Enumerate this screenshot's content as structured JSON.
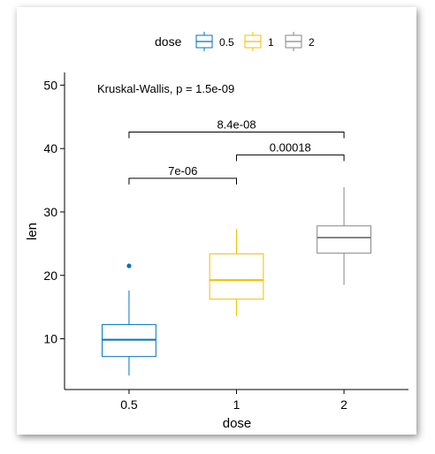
{
  "chart_data": {
    "type": "box",
    "xlabel": "dose",
    "ylabel": "len",
    "ylim": [
      2,
      52
    ],
    "yticks": [
      10,
      20,
      30,
      40,
      50
    ],
    "categories": [
      "0.5",
      "1",
      "2"
    ],
    "legend": {
      "title": "dose",
      "placement": "top",
      "entries": [
        "0.5",
        "1",
        "2"
      ]
    },
    "colors": [
      "#0073C2",
      "#EFC000",
      "#868686"
    ],
    "series": [
      {
        "name": "0.5",
        "min": 4.2,
        "q1": 7.2,
        "median": 9.85,
        "q3": 12.25,
        "max": 17.6,
        "outliers": [
          21.5
        ]
      },
      {
        "name": "1",
        "min": 13.6,
        "q1": 16.25,
        "median": 19.25,
        "q3": 23.4,
        "max": 27.3,
        "outliers": []
      },
      {
        "name": "2",
        "min": 18.5,
        "q1": 23.5,
        "median": 25.95,
        "q3": 27.8,
        "max": 33.9,
        "outliers": []
      }
    ],
    "annotations": {
      "global_test": "Kruskal-Wallis, p = 1.5e-09",
      "comparisons": [
        {
          "group1": "0.5",
          "group2": "1",
          "label": "7e-06",
          "y": 35.3
        },
        {
          "group1": "1",
          "group2": "2",
          "label": "0.00018",
          "y": 39.0
        },
        {
          "group1": "0.5",
          "group2": "2",
          "label": "8.4e-08",
          "y": 42.6
        }
      ]
    }
  }
}
